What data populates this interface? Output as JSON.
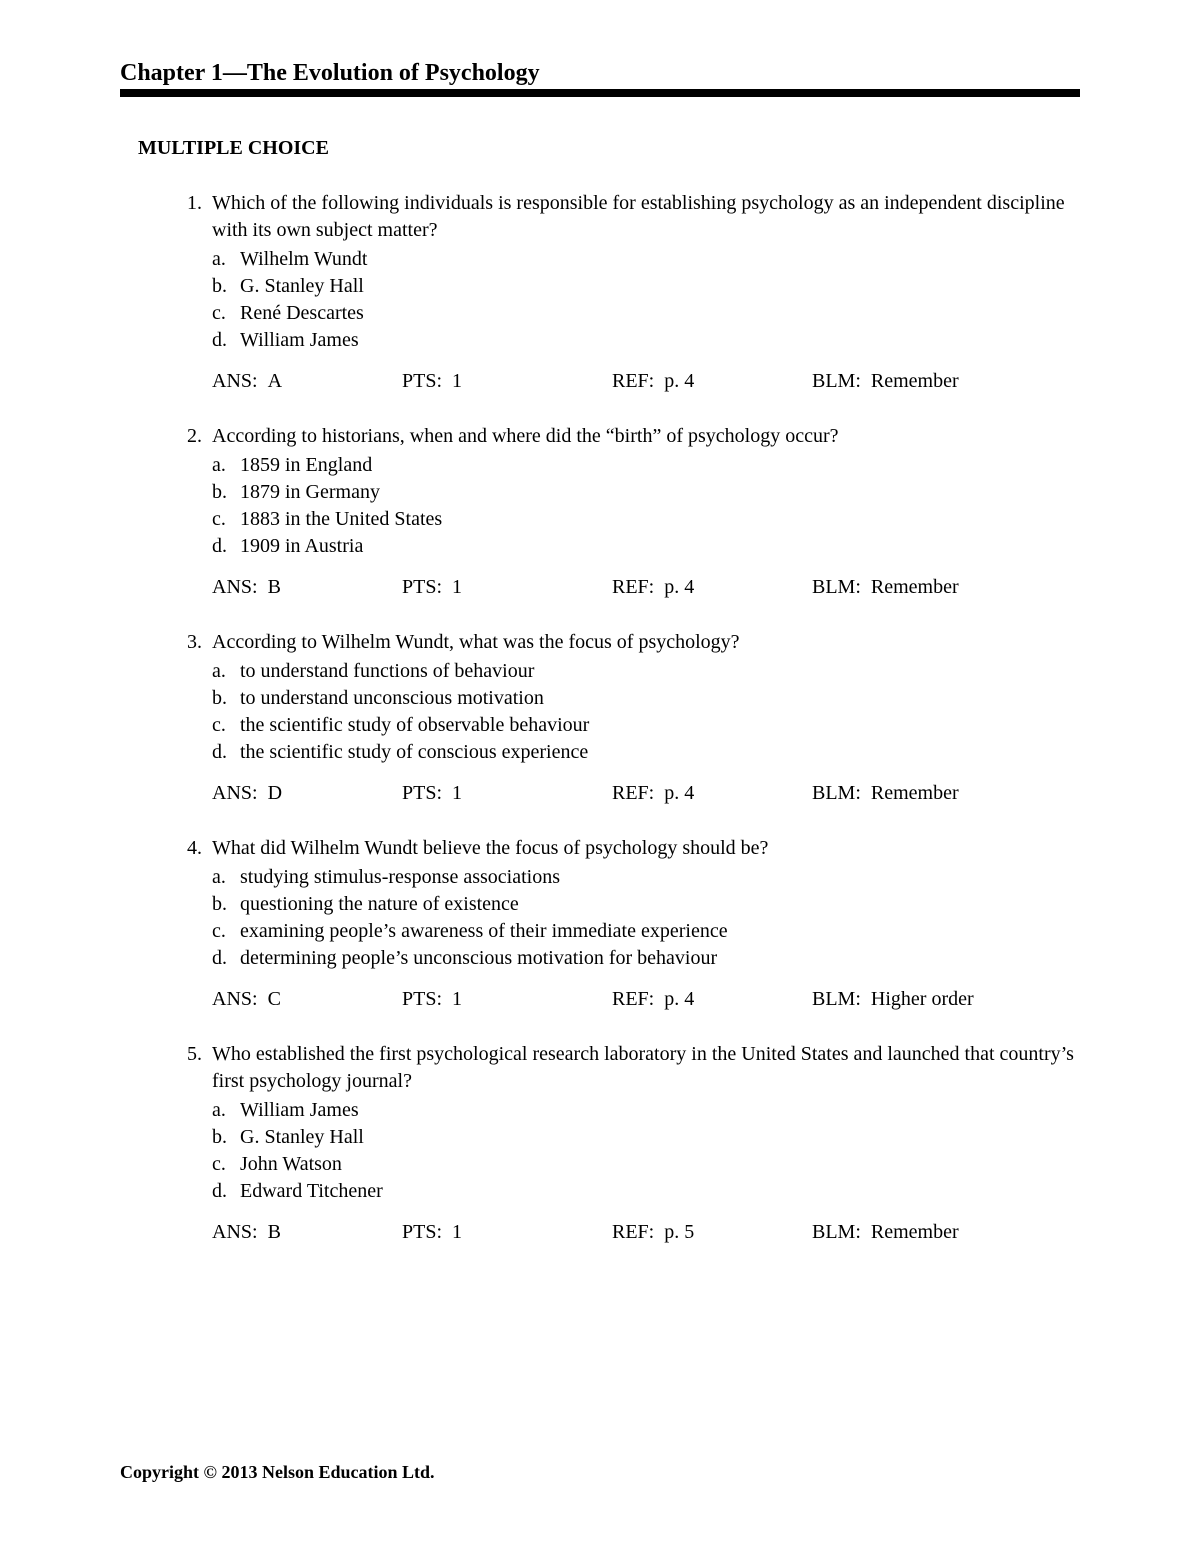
{
  "chapter_title": "Chapter 1—The Evolution of Psychology",
  "section_label": "MULTIPLE CHOICE",
  "labels": {
    "ans": "ANS:",
    "pts": "PTS:",
    "ref": "REF:",
    "blm": "BLM:"
  },
  "questions": [
    {
      "num": "1.",
      "stem": "Which of the following individuals is responsible for establishing psychology as an independent discipline with its own subject matter?",
      "choices": [
        {
          "letter": "a.",
          "text": "Wilhelm Wundt"
        },
        {
          "letter": "b.",
          "text": "G. Stanley Hall"
        },
        {
          "letter": "c.",
          "text": "René Descartes"
        },
        {
          "letter": "d.",
          "text": "William James"
        }
      ],
      "ans": "A",
      "pts": "1",
      "ref": "p. 4",
      "blm": "Remember"
    },
    {
      "num": "2.",
      "stem": "According to historians, when and where did the “birth” of psychology occur?",
      "choices": [
        {
          "letter": "a.",
          "text": "1859 in England"
        },
        {
          "letter": "b.",
          "text": "1879 in Germany"
        },
        {
          "letter": "c.",
          "text": "1883 in the United States"
        },
        {
          "letter": "d.",
          "text": "1909 in Austria"
        }
      ],
      "ans": "B",
      "pts": "1",
      "ref": "p. 4",
      "blm": "Remember"
    },
    {
      "num": "3.",
      "stem": "According to Wilhelm Wundt, what was the focus of psychology?",
      "choices": [
        {
          "letter": "a.",
          "text": "to understand functions of behaviour"
        },
        {
          "letter": "b.",
          "text": "to understand unconscious motivation"
        },
        {
          "letter": "c.",
          "text": "the scientific study of observable behaviour"
        },
        {
          "letter": "d.",
          "text": "the scientific study of conscious experience"
        }
      ],
      "ans": "D",
      "pts": "1",
      "ref": "p. 4",
      "blm": "Remember"
    },
    {
      "num": "4.",
      "stem": "What did Wilhelm Wundt believe the focus of psychology should be?",
      "choices": [
        {
          "letter": "a.",
          "text": "studying stimulus-response associations"
        },
        {
          "letter": "b.",
          "text": "questioning the nature of existence"
        },
        {
          "letter": "c.",
          "text": "examining people’s awareness of their immediate experience"
        },
        {
          "letter": "d.",
          "text": "determining people’s unconscious motivation for behaviour"
        }
      ],
      "ans": "C",
      "pts": "1",
      "ref": "p. 4",
      "blm": "Higher order"
    },
    {
      "num": "5.",
      "stem": "Who established the first psychological research laboratory in the United States and launched that country’s first psychology journal?",
      "choices": [
        {
          "letter": "a.",
          "text": "William James"
        },
        {
          "letter": "b.",
          "text": "G. Stanley Hall"
        },
        {
          "letter": "c.",
          "text": "John Watson"
        },
        {
          "letter": "d.",
          "text": "Edward Titchener"
        }
      ],
      "ans": "B",
      "pts": "1",
      "ref": "p. 5",
      "blm": "Remember"
    }
  ],
  "footer": "Copyright © 2013 Nelson Education Ltd."
}
